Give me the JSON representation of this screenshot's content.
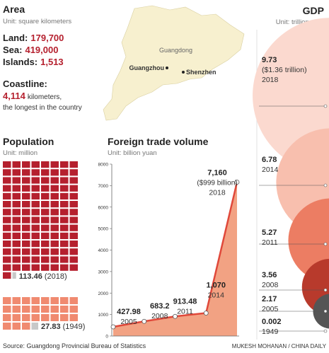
{
  "area": {
    "title": "Area",
    "unit": "Unit: square kilometers",
    "items": [
      {
        "label": "Land:",
        "value": "179,700"
      },
      {
        "label": "Sea:",
        "value": "419,000"
      },
      {
        "label": "Islands:",
        "value": "1,513"
      }
    ],
    "coastline": {
      "label": "Coastline:",
      "value": "4,114",
      "text": "kilometers,",
      "note": "the longest in the country"
    },
    "map_labels": [
      "Guangdong",
      "Guangzhou",
      "Shenzhen"
    ]
  },
  "chart_data": [
    {
      "type": "waffle",
      "title": "Population",
      "subtitle": "Unit: million",
      "categories": [
        "(2018)",
        "(1949)"
      ],
      "values": [
        113.46,
        27.83
      ],
      "colors": [
        "#b5202e",
        "#f08a70"
      ]
    },
    {
      "type": "area",
      "title": "Foreign trade volume",
      "subtitle": "Unit: billion yuan",
      "categories": [
        "2005",
        "2008",
        "2011",
        "2014",
        "2018"
      ],
      "values": [
        427.98,
        683.2,
        913.48,
        1070,
        7160
      ],
      "value_labels": [
        "427.98",
        "683.2",
        "913.48",
        "1,070",
        "7,160"
      ],
      "annotation": "($999 billion)",
      "ylim": [
        0,
        8000
      ],
      "yticks": [
        0,
        1000,
        2000,
        3000,
        4000,
        5000,
        6000,
        7000,
        8000
      ],
      "color": "#f2a283",
      "line_color": "#e0483a"
    },
    {
      "type": "bubble",
      "title": "GDP",
      "subtitle": "Unit: trillion yuan",
      "categories": [
        "2018",
        "2014",
        "2011",
        "2008",
        "2005",
        "1949"
      ],
      "values": [
        9.73,
        6.78,
        5.27,
        3.56,
        2.17,
        0.002
      ],
      "annotation": "($1.36 trillion)",
      "colors": [
        "#fbd9cf",
        "#f8bfae",
        "#ec7d63",
        "#b83a2c",
        "#555555",
        "#222222"
      ]
    }
  ],
  "source": "Source: Guangdong Provincial Bureau of Statistics",
  "credit": "MUKESH MOHANAN / CHINA DAILY"
}
